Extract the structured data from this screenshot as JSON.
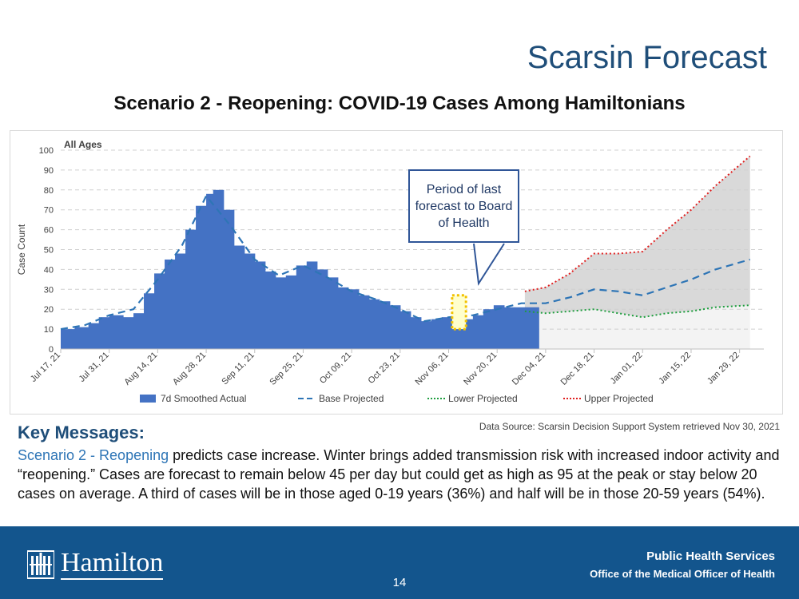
{
  "slide": {
    "title": "Scarsin Forecast",
    "chart_heading": "Scenario 2 - Reopening: COVID-19 Cases Among Hamiltonians",
    "callout": "Period of last forecast to Board of Health",
    "source": "Data Source: Scarsin Decision Support System retrieved Nov 30, 2021"
  },
  "key_messages": {
    "heading": "Key Messages:",
    "lead": "Scenario 2 - Reopening",
    "body": " predicts case increase. Winter brings added transmission risk with increased indoor activity and “reopening.” Cases are forecast to remain below 45 per day but could get as high as 95 at the peak or stay below 20 cases on average. A third of cases will be in those aged 0-19 years (36%) and half will be in those 20-59 years (54%)."
  },
  "footer": {
    "logo_text": "Hamilton",
    "page_number": "14",
    "org_line1": "Public Health Services",
    "org_line2": "Office of the Medical Officer of Health"
  },
  "chart_data": {
    "type": "area",
    "inner_label": "All Ages",
    "ylabel": "Case Count",
    "ylim": [
      0,
      100
    ],
    "yticks": [
      0,
      10,
      20,
      30,
      40,
      50,
      60,
      70,
      80,
      90,
      100
    ],
    "grid": true,
    "legend_position": "bottom",
    "x_start": "2021-07-17",
    "x_end": "2022-02-05",
    "xticks": [
      {
        "date": "2021-07-17",
        "label": "Jul 17, 21"
      },
      {
        "date": "2021-07-31",
        "label": "Jul 31, 21"
      },
      {
        "date": "2021-08-14",
        "label": "Aug 14, 21"
      },
      {
        "date": "2021-08-28",
        "label": "Aug 28, 21"
      },
      {
        "date": "2021-09-11",
        "label": "Sep 11, 21"
      },
      {
        "date": "2021-09-25",
        "label": "Sep 25, 21"
      },
      {
        "date": "2021-10-09",
        "label": "Oct 09, 21"
      },
      {
        "date": "2021-10-23",
        "label": "Oct 23, 21"
      },
      {
        "date": "2021-11-06",
        "label": "Nov 06, 21"
      },
      {
        "date": "2021-11-20",
        "label": "Nov 20, 21"
      },
      {
        "date": "2021-12-04",
        "label": "Dec 04, 21"
      },
      {
        "date": "2021-12-18",
        "label": "Dec 18, 21"
      },
      {
        "date": "2022-01-01",
        "label": "Jan 01, 22"
      },
      {
        "date": "2022-01-15",
        "label": "Jan 15, 22"
      },
      {
        "date": "2022-01-29",
        "label": "Jan 29, 22"
      }
    ],
    "highlight_period": {
      "start": "2021-11-07",
      "end": "2021-11-11",
      "ymin": 10,
      "ymax": 27
    },
    "series": [
      {
        "name": "7d Smoothed Actual",
        "style": "bars",
        "color": "#4472c4",
        "points": [
          [
            "2021-07-17",
            10
          ],
          [
            "2021-07-21",
            11
          ],
          [
            "2021-07-25",
            13
          ],
          [
            "2021-07-28",
            16
          ],
          [
            "2021-07-31",
            17
          ],
          [
            "2021-08-04",
            16
          ],
          [
            "2021-08-07",
            18
          ],
          [
            "2021-08-10",
            28
          ],
          [
            "2021-08-13",
            38
          ],
          [
            "2021-08-16",
            45
          ],
          [
            "2021-08-19",
            48
          ],
          [
            "2021-08-22",
            60
          ],
          [
            "2021-08-25",
            72
          ],
          [
            "2021-08-28",
            78
          ],
          [
            "2021-08-30",
            80
          ],
          [
            "2021-09-02",
            70
          ],
          [
            "2021-09-05",
            52
          ],
          [
            "2021-09-08",
            48
          ],
          [
            "2021-09-11",
            44
          ],
          [
            "2021-09-14",
            39
          ],
          [
            "2021-09-17",
            36
          ],
          [
            "2021-09-20",
            37
          ],
          [
            "2021-09-23",
            42
          ],
          [
            "2021-09-26",
            44
          ],
          [
            "2021-09-29",
            40
          ],
          [
            "2021-10-02",
            36
          ],
          [
            "2021-10-05",
            31
          ],
          [
            "2021-10-08",
            30
          ],
          [
            "2021-10-11",
            27
          ],
          [
            "2021-10-14",
            25
          ],
          [
            "2021-10-17",
            24
          ],
          [
            "2021-10-20",
            22
          ],
          [
            "2021-10-23",
            19
          ],
          [
            "2021-10-26",
            16
          ],
          [
            "2021-10-29",
            14
          ],
          [
            "2021-11-01",
            15
          ],
          [
            "2021-11-04",
            16
          ],
          [
            "2021-11-07",
            17
          ],
          [
            "2021-11-10",
            15
          ],
          [
            "2021-11-13",
            17
          ],
          [
            "2021-11-16",
            20
          ],
          [
            "2021-11-19",
            22
          ],
          [
            "2021-11-22",
            21
          ],
          [
            "2021-11-25",
            21
          ],
          [
            "2021-11-28",
            21
          ]
        ]
      },
      {
        "name": "Base Projected",
        "style": "dashed",
        "color": "#2e75b6",
        "points": [
          [
            "2021-07-17",
            10
          ],
          [
            "2021-07-24",
            12
          ],
          [
            "2021-07-31",
            17
          ],
          [
            "2021-08-07",
            20
          ],
          [
            "2021-08-14",
            35
          ],
          [
            "2021-08-21",
            52
          ],
          [
            "2021-08-28",
            77
          ],
          [
            "2021-09-04",
            62
          ],
          [
            "2021-09-11",
            45
          ],
          [
            "2021-09-18",
            37
          ],
          [
            "2021-09-25",
            42
          ],
          [
            "2021-10-02",
            36
          ],
          [
            "2021-10-09",
            29
          ],
          [
            "2021-10-16",
            25
          ],
          [
            "2021-10-23",
            20
          ],
          [
            "2021-10-30",
            14
          ],
          [
            "2021-11-06",
            16
          ],
          [
            "2021-11-13",
            17
          ],
          [
            "2021-11-20",
            20
          ],
          [
            "2021-11-27",
            23
          ],
          [
            "2021-12-04",
            23
          ],
          [
            "2021-12-11",
            26
          ],
          [
            "2021-12-18",
            30
          ],
          [
            "2021-12-25",
            29
          ],
          [
            "2022-01-01",
            27
          ],
          [
            "2022-01-08",
            31
          ],
          [
            "2022-01-15",
            35
          ],
          [
            "2022-01-22",
            40
          ],
          [
            "2022-02-01",
            45
          ]
        ]
      },
      {
        "name": "Lower Projected",
        "style": "dotted",
        "color": "#1e9e3e",
        "points": [
          [
            "2021-11-28",
            19
          ],
          [
            "2021-12-04",
            18
          ],
          [
            "2021-12-11",
            19
          ],
          [
            "2021-12-18",
            20
          ],
          [
            "2021-12-25",
            18
          ],
          [
            "2022-01-01",
            16
          ],
          [
            "2022-01-08",
            18
          ],
          [
            "2022-01-15",
            19
          ],
          [
            "2022-01-22",
            21
          ],
          [
            "2022-02-01",
            22
          ]
        ]
      },
      {
        "name": "Upper Projected",
        "style": "dotted",
        "color": "#e02020",
        "points": [
          [
            "2021-11-28",
            29
          ],
          [
            "2021-12-04",
            31
          ],
          [
            "2021-12-11",
            38
          ],
          [
            "2021-12-18",
            48
          ],
          [
            "2021-12-25",
            48
          ],
          [
            "2022-01-01",
            49
          ],
          [
            "2022-01-08",
            60
          ],
          [
            "2022-01-15",
            70
          ],
          [
            "2022-01-22",
            82
          ],
          [
            "2022-02-01",
            97
          ]
        ]
      }
    ]
  }
}
